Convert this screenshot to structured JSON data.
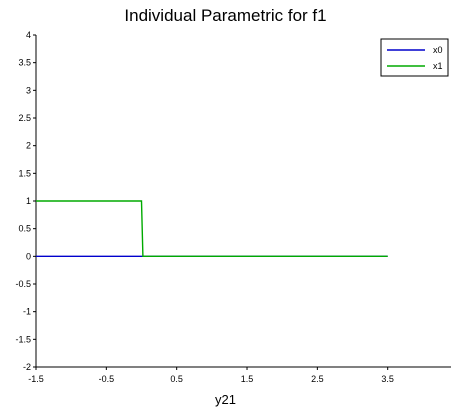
{
  "chart_data": {
    "type": "line",
    "title": "Individual Parametric for f1",
    "xlabel": "y21",
    "ylabel": "",
    "xlim": [
      -1.5,
      4.4
    ],
    "ylim": [
      -2,
      4
    ],
    "x_ticks": [
      "-1.5",
      "-0.5",
      "0.5",
      "1.5",
      "2.5",
      "3.5"
    ],
    "y_ticks": [
      "-2",
      "-1.5",
      "-1",
      "-0.5",
      "0",
      "0.5",
      "1",
      "1.5",
      "2",
      "2.5",
      "3",
      "3.5",
      "4"
    ],
    "grid": false,
    "legend_position": "top-right",
    "series": [
      {
        "name": "x0",
        "color": "#0000cc",
        "x": [
          -1.5,
          3.5
        ],
        "y": [
          0,
          0
        ]
      },
      {
        "name": "x1",
        "color": "#00aa00",
        "x": [
          -1.5,
          0.0,
          0.02,
          3.5
        ],
        "y": [
          1,
          1,
          0,
          0
        ]
      }
    ]
  }
}
